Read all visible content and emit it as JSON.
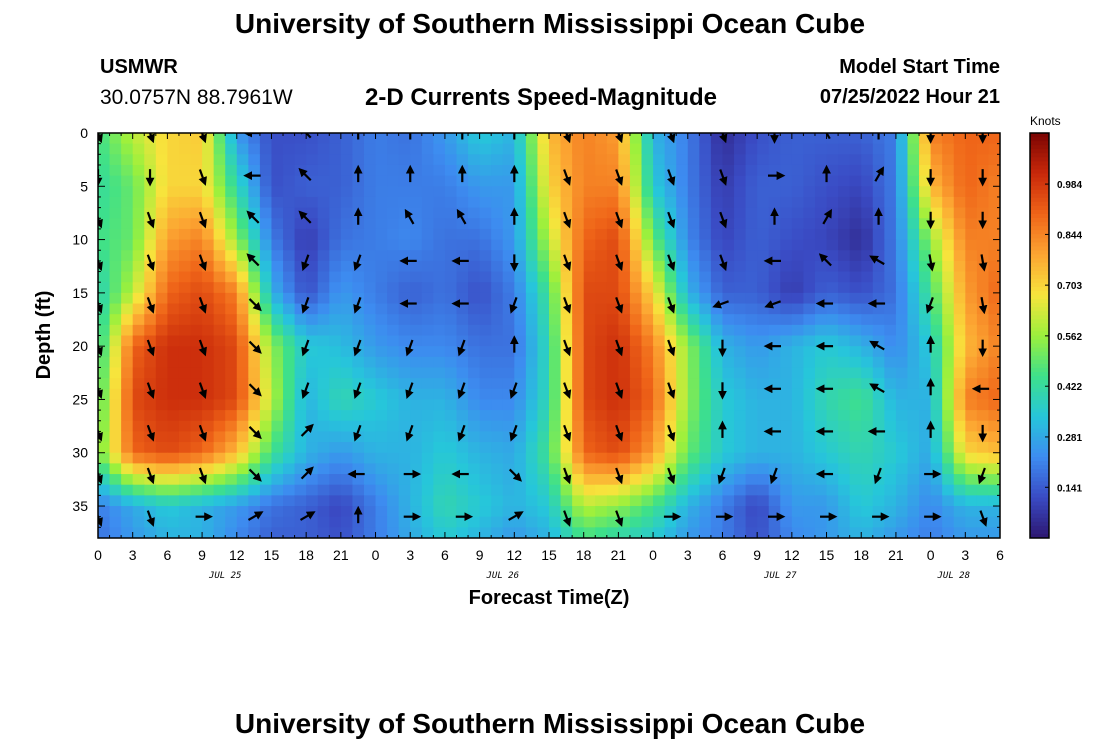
{
  "header": {
    "main_title": "University of Southern Mississippi Ocean Cube",
    "station_name": "USMWR",
    "station_coords": "30.0757N  88.7961W",
    "plot_title": "2-D Currents Speed-Magnitude",
    "model_start_label": "Model Start Time",
    "model_start_value": "07/25/2022 Hour 21"
  },
  "footer": {
    "title": "University of Southern Mississippi Ocean Cube"
  },
  "chart_data": {
    "type": "heatmap",
    "title": "2-D Currents Speed-Magnitude",
    "xlabel": "Forecast Time(Z)",
    "ylabel": "Depth (ft)",
    "x_range_hours": [
      0,
      78
    ],
    "y_range_ft": [
      0,
      38
    ],
    "x_ticks": [
      {
        "hour": 0,
        "label": "0"
      },
      {
        "hour": 3,
        "label": "3"
      },
      {
        "hour": 6,
        "label": "6"
      },
      {
        "hour": 9,
        "label": "9"
      },
      {
        "hour": 12,
        "label": "12"
      },
      {
        "hour": 15,
        "label": "15"
      },
      {
        "hour": 18,
        "label": "18"
      },
      {
        "hour": 21,
        "label": "21"
      },
      {
        "hour": 24,
        "label": "0"
      },
      {
        "hour": 27,
        "label": "3"
      },
      {
        "hour": 30,
        "label": "6"
      },
      {
        "hour": 33,
        "label": "9"
      },
      {
        "hour": 36,
        "label": "12"
      },
      {
        "hour": 39,
        "label": "15"
      },
      {
        "hour": 42,
        "label": "18"
      },
      {
        "hour": 45,
        "label": "21"
      },
      {
        "hour": 48,
        "label": "0"
      },
      {
        "hour": 51,
        "label": "3"
      },
      {
        "hour": 54,
        "label": "6"
      },
      {
        "hour": 57,
        "label": "9"
      },
      {
        "hour": 60,
        "label": "12"
      },
      {
        "hour": 63,
        "label": "15"
      },
      {
        "hour": 66,
        "label": "18"
      },
      {
        "hour": 69,
        "label": "21"
      },
      {
        "hour": 72,
        "label": "0"
      },
      {
        "hour": 75,
        "label": "3"
      },
      {
        "hour": 78,
        "label": "6"
      }
    ],
    "date_labels": [
      {
        "hour": 11,
        "label": "JUL 25"
      },
      {
        "hour": 35,
        "label": "JUL 26"
      },
      {
        "hour": 59,
        "label": "JUL 27"
      },
      {
        "hour": 74,
        "label": "JUL 28"
      }
    ],
    "y_ticks": [
      0,
      5,
      10,
      15,
      20,
      25,
      30,
      35
    ],
    "colorbar": {
      "title": "Knots",
      "labels": [
        0.141,
        0.281,
        0.422,
        0.562,
        0.703,
        0.844,
        0.984
      ],
      "range": [
        0,
        1.126
      ],
      "colors": [
        "#2c1670",
        "#3a4bc4",
        "#3d8cf0",
        "#26c6da",
        "#3ee08a",
        "#9cf03c",
        "#f7e43c",
        "#fca532",
        "#ef6418",
        "#c8280a",
        "#7a0403"
      ]
    },
    "speed_field": {
      "units": "knots",
      "hours": [
        0,
        3,
        6,
        9,
        12,
        15,
        18,
        21,
        24,
        27,
        30,
        33,
        36,
        39,
        42,
        45,
        48,
        51,
        54,
        57,
        60,
        63,
        66,
        69,
        72,
        75,
        78
      ],
      "depths_ft": [
        0,
        5,
        10,
        15,
        20,
        25,
        30,
        35,
        38
      ],
      "rows": [
        [
          0.45,
          0.6,
          0.7,
          0.72,
          0.25,
          0.12,
          0.12,
          0.15,
          0.2,
          0.18,
          0.25,
          0.35,
          0.3,
          0.75,
          0.85,
          0.8,
          0.3,
          0.2,
          0.05,
          0.12,
          0.15,
          0.15,
          0.15,
          0.2,
          0.85,
          0.9,
          0.9
        ],
        [
          0.42,
          0.5,
          0.7,
          0.7,
          0.4,
          0.12,
          0.15,
          0.15,
          0.2,
          0.2,
          0.2,
          0.25,
          0.25,
          0.7,
          0.85,
          0.85,
          0.35,
          0.2,
          0.08,
          0.15,
          0.15,
          0.12,
          0.1,
          0.2,
          0.75,
          0.9,
          0.85
        ],
        [
          0.45,
          0.5,
          0.8,
          0.85,
          0.55,
          0.2,
          0.08,
          0.18,
          0.2,
          0.22,
          0.18,
          0.18,
          0.25,
          0.6,
          0.9,
          0.95,
          0.5,
          0.22,
          0.1,
          0.15,
          0.12,
          0.1,
          0.05,
          0.2,
          0.55,
          0.85,
          0.85
        ],
        [
          0.38,
          0.6,
          0.9,
          0.95,
          0.85,
          0.3,
          0.12,
          0.25,
          0.2,
          0.15,
          0.18,
          0.12,
          0.2,
          0.45,
          0.95,
          0.95,
          0.7,
          0.3,
          0.15,
          0.15,
          0.08,
          0.15,
          0.12,
          0.18,
          0.45,
          0.8,
          0.9
        ],
        [
          0.4,
          0.9,
          1.0,
          1.0,
          0.95,
          0.55,
          0.35,
          0.32,
          0.25,
          0.22,
          0.22,
          0.18,
          0.18,
          0.4,
          0.95,
          1.0,
          0.85,
          0.55,
          0.3,
          0.25,
          0.3,
          0.35,
          0.3,
          0.22,
          0.35,
          0.75,
          0.85
        ],
        [
          0.45,
          0.95,
          1.0,
          1.0,
          0.95,
          0.6,
          0.3,
          0.4,
          0.35,
          0.3,
          0.3,
          0.22,
          0.22,
          0.4,
          0.95,
          1.0,
          0.9,
          0.55,
          0.35,
          0.3,
          0.3,
          0.4,
          0.45,
          0.3,
          0.3,
          0.85,
          0.9
        ],
        [
          0.5,
          0.9,
          0.95,
          0.9,
          0.75,
          0.45,
          0.3,
          0.25,
          0.3,
          0.3,
          0.35,
          0.3,
          0.28,
          0.45,
          0.9,
          0.95,
          0.8,
          0.5,
          0.35,
          0.3,
          0.3,
          0.35,
          0.4,
          0.35,
          0.28,
          0.7,
          0.75
        ],
        [
          0.2,
          0.28,
          0.35,
          0.3,
          0.25,
          0.18,
          0.15,
          0.1,
          0.2,
          0.3,
          0.4,
          0.35,
          0.3,
          0.35,
          0.6,
          0.55,
          0.45,
          0.3,
          0.2,
          0.1,
          0.25,
          0.25,
          0.35,
          0.3,
          0.22,
          0.3,
          0.3
        ],
        [
          0.18,
          0.25,
          0.3,
          0.3,
          0.22,
          0.15,
          0.15,
          0.12,
          0.2,
          0.28,
          0.35,
          0.3,
          0.25,
          0.3,
          0.45,
          0.4,
          0.35,
          0.25,
          0.2,
          0.12,
          0.22,
          0.25,
          0.3,
          0.25,
          0.2,
          0.25,
          0.25
        ]
      ]
    },
    "current_vectors": {
      "description": "Current direction arrows; direction in degrees compass (0 = north/up, 90 = east/right)",
      "hours": [
        0,
        4.5,
        9,
        13.5,
        18,
        22.5,
        27,
        31.5,
        36,
        40.5,
        45,
        49.5,
        54,
        58.5,
        63,
        67.5,
        72,
        76.5
      ],
      "depths_ft": [
        0,
        4,
        8,
        12,
        16,
        20,
        24,
        28,
        32,
        36
      ],
      "direction_deg": [
        [
          160,
          160,
          160,
          270,
          315,
          0,
          0,
          0,
          0,
          160,
          160,
          160,
          160,
          180,
          330,
          0,
          180,
          180
        ],
        [
          180,
          180,
          160,
          270,
          315,
          0,
          0,
          0,
          0,
          160,
          160,
          160,
          160,
          90,
          0,
          30,
          180,
          180
        ],
        [
          160,
          160,
          160,
          315,
          315,
          0,
          330,
          330,
          0,
          160,
          160,
          160,
          160,
          0,
          30,
          0,
          180,
          180
        ],
        [
          160,
          160,
          160,
          315,
          200,
          200,
          270,
          270,
          180,
          160,
          160,
          160,
          160,
          270,
          315,
          300,
          170,
          170
        ],
        [
          160,
          160,
          160,
          135,
          200,
          200,
          270,
          270,
          200,
          160,
          160,
          160,
          250,
          250,
          270,
          270,
          200,
          170
        ],
        [
          160,
          160,
          160,
          135,
          200,
          200,
          200,
          200,
          0,
          160,
          160,
          160,
          180,
          270,
          270,
          300,
          0,
          180
        ],
        [
          160,
          160,
          160,
          135,
          200,
          200,
          200,
          200,
          200,
          160,
          160,
          160,
          180,
          270,
          270,
          300,
          0,
          270
        ],
        [
          160,
          160,
          160,
          135,
          45,
          200,
          200,
          200,
          200,
          160,
          160,
          160,
          0,
          270,
          270,
          270,
          0,
          180
        ],
        [
          160,
          160,
          160,
          135,
          45,
          270,
          90,
          270,
          135,
          160,
          160,
          160,
          200,
          200,
          270,
          200,
          90,
          200
        ],
        [
          160,
          160,
          90,
          60,
          60,
          0,
          90,
          90,
          60,
          160,
          160,
          90,
          90,
          90,
          90,
          90,
          90,
          160
        ]
      ]
    }
  }
}
